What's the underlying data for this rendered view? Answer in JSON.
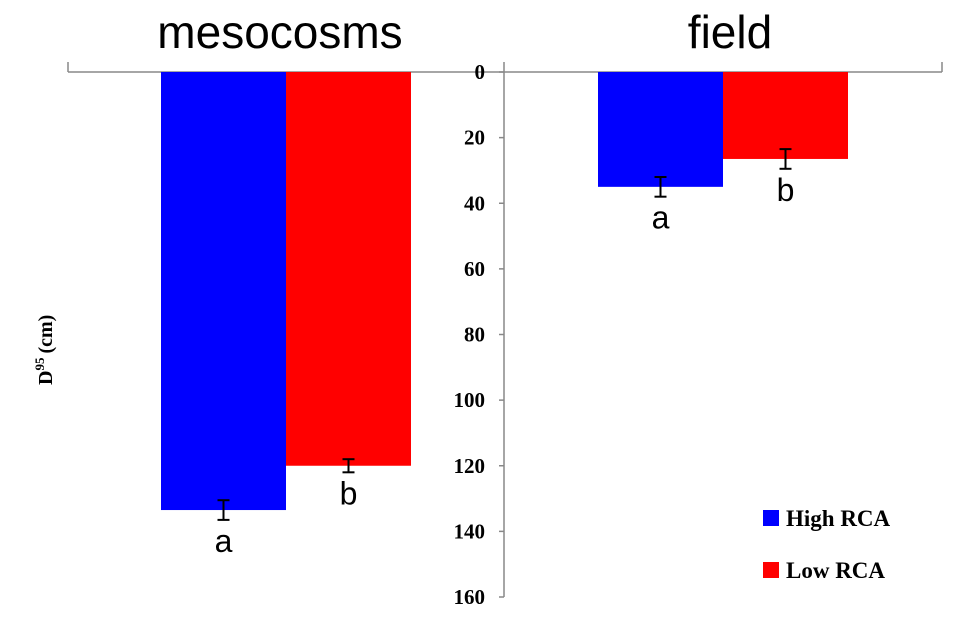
{
  "chart_data": {
    "type": "bar",
    "ylabel": "D95 (cm)",
    "ylabel_main": "D",
    "ylabel_sup": "95",
    "ylabel_unit": "(cm)",
    "ylim": [
      0,
      160
    ],
    "y_inverted": true,
    "yticks": [
      0,
      20,
      40,
      60,
      80,
      100,
      120,
      140,
      160
    ],
    "legend_position": "bottom-right",
    "panels": [
      {
        "title": "mesocosms",
        "categories": [
          "High RCA",
          "Low RCA"
        ],
        "values": [
          133.5,
          120
        ],
        "errors": [
          3,
          2
        ],
        "letters": [
          "a",
          "b"
        ]
      },
      {
        "title": "field",
        "categories": [
          "High RCA",
          "Low RCA"
        ],
        "values": [
          35,
          26.5
        ],
        "errors": [
          3,
          3
        ],
        "letters": [
          "a",
          "b"
        ]
      }
    ],
    "series": [
      {
        "name": "High RCA",
        "color": "#0000ff"
      },
      {
        "name": "Low RCA",
        "color": "#ff0000"
      }
    ]
  }
}
